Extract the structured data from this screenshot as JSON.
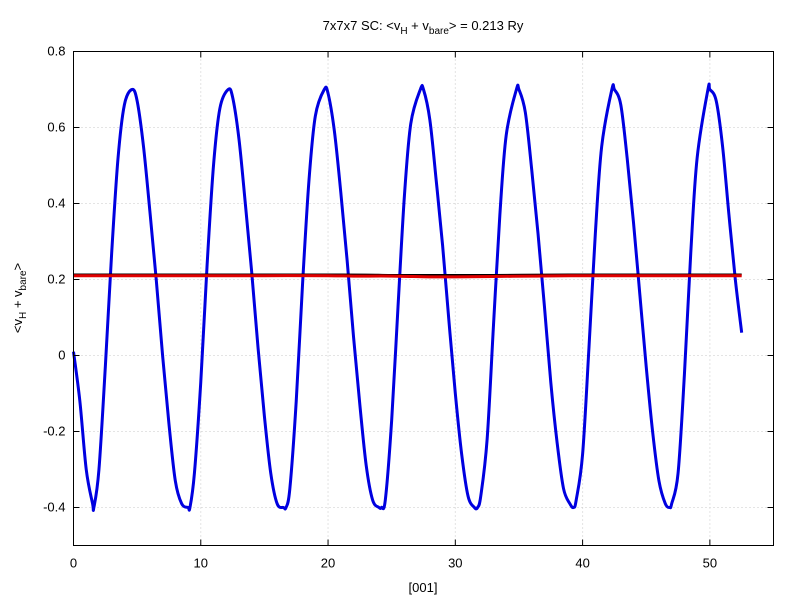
{
  "chart_data": {
    "type": "line",
    "title": {
      "prefix": "7x7x7 SC: <v",
      "sub1": "H",
      "mid": " + v",
      "sub2": "bare",
      "suffix": "> = 0.213 Ry"
    },
    "xlabel": "[001]",
    "ylabel": {
      "prefix": "<v",
      "sub1": "H",
      "mid": " + v",
      "sub2": "bare",
      "suffix": ">"
    },
    "xlim": [
      0,
      55
    ],
    "ylim": [
      -0.5,
      0.8
    ],
    "xticks": [
      0,
      10,
      20,
      30,
      40,
      50
    ],
    "xtick_labels": [
      "0",
      "10",
      "20",
      "30",
      "40",
      "50"
    ],
    "yticks": [
      -0.4,
      -0.2,
      0,
      0.2,
      0.4,
      0.6,
      0.8
    ],
    "ytick_labels": [
      "-0.4",
      "-0.2",
      "0",
      "0.2",
      "0.4",
      "0.6",
      "0.8"
    ],
    "grid": true,
    "legend": "none",
    "series": [
      {
        "color": "#0000e0",
        "x": [
          0.0,
          0.5,
          1.0,
          1.5,
          1.6,
          2.0,
          2.5,
          3.0,
          3.5,
          4.0,
          4.6,
          5.0,
          5.5,
          6.0,
          6.5,
          7.0,
          7.5,
          8.0,
          8.5,
          9.0,
          9.15,
          9.5,
          10.0,
          10.5,
          11.0,
          11.5,
          12.15,
          12.5,
          13.0,
          13.5,
          14.0,
          14.5,
          15.0,
          15.5,
          16.0,
          16.5,
          16.7,
          17.0,
          17.5,
          18.0,
          18.5,
          19.0,
          19.7,
          20.0,
          20.5,
          21.0,
          21.5,
          22.0,
          22.5,
          23.0,
          23.5,
          24.0,
          24.2,
          24.5,
          25.0,
          25.5,
          26.0,
          26.5,
          27.25,
          27.5,
          28.0,
          28.5,
          29.0,
          29.5,
          30.0,
          30.5,
          31.0,
          31.5,
          31.75,
          32.0,
          32.5,
          33.0,
          33.5,
          34.0,
          34.8,
          35.0,
          35.5,
          36.0,
          36.5,
          37.0,
          37.5,
          38.0,
          38.5,
          39.0,
          39.3,
          39.5,
          40.0,
          40.5,
          41.0,
          41.5,
          42.3,
          42.5,
          43.0,
          43.5,
          44.0,
          44.5,
          45.0,
          45.5,
          46.0,
          46.5,
          46.85,
          47.0,
          47.5,
          48.0,
          48.5,
          49.0,
          49.85,
          50.0,
          50.5,
          51.0,
          51.5,
          52.0,
          52.5
        ],
        "y": [
          0.01,
          -0.12,
          -0.3,
          -0.39,
          -0.4,
          -0.3,
          -0.03,
          0.27,
          0.52,
          0.66,
          0.7,
          0.67,
          0.55,
          0.38,
          0.2,
          0.0,
          -0.18,
          -0.33,
          -0.39,
          -0.4,
          -0.4,
          -0.31,
          -0.07,
          0.24,
          0.5,
          0.65,
          0.7,
          0.68,
          0.57,
          0.4,
          0.22,
          0.02,
          -0.16,
          -0.31,
          -0.39,
          -0.4,
          -0.4,
          -0.35,
          -0.12,
          0.19,
          0.46,
          0.63,
          0.7,
          0.69,
          0.59,
          0.43,
          0.25,
          0.05,
          -0.13,
          -0.29,
          -0.38,
          -0.4,
          -0.4,
          -0.38,
          -0.17,
          0.13,
          0.42,
          0.61,
          0.7,
          0.7,
          0.62,
          0.46,
          0.29,
          0.09,
          -0.1,
          -0.26,
          -0.37,
          -0.4,
          -0.4,
          -0.37,
          -0.22,
          0.08,
          0.37,
          0.58,
          0.7,
          0.7,
          0.64,
          0.49,
          0.32,
          0.13,
          -0.07,
          -0.23,
          -0.35,
          -0.39,
          -0.4,
          -0.38,
          -0.26,
          0.02,
          0.32,
          0.55,
          0.7,
          0.7,
          0.66,
          0.52,
          0.35,
          0.16,
          -0.03,
          -0.2,
          -0.33,
          -0.39,
          -0.4,
          -0.39,
          -0.31,
          -0.05,
          0.27,
          0.52,
          0.7,
          0.7,
          0.67,
          0.55,
          0.37,
          0.2,
          0.06
        ]
      },
      {
        "color": "#000000",
        "x": [
          0,
          21,
          25,
          33,
          39,
          52.5
        ],
        "y": [
          0.213,
          0.213,
          0.212,
          0.212,
          0.213,
          0.213
        ]
      },
      {
        "color": "#e00000",
        "x": [
          0,
          5,
          10,
          15,
          20,
          22,
          25,
          28,
          30,
          33,
          36,
          39,
          45,
          52.5
        ],
        "y": [
          0.21,
          0.21,
          0.21,
          0.21,
          0.21,
          0.209,
          0.209,
          0.207,
          0.207,
          0.208,
          0.209,
          0.21,
          0.21,
          0.21
        ]
      }
    ]
  }
}
